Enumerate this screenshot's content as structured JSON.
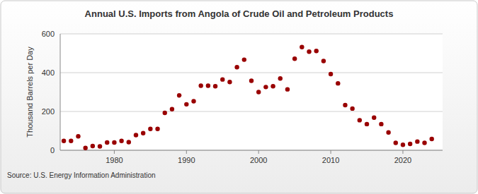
{
  "chart_data": {
    "type": "scatter",
    "title": "Annual U.S. Imports from Angola of Crude Oil and Petroleum Products",
    "y_label": "Thousand Barrels per Day",
    "source": "Source: U.S. Energy Information Administration",
    "x": [
      1973,
      1974,
      1975,
      1976,
      1977,
      1978,
      1979,
      1980,
      1981,
      1982,
      1983,
      1984,
      1985,
      1986,
      1987,
      1988,
      1989,
      1990,
      1991,
      1992,
      1993,
      1994,
      1995,
      1996,
      1997,
      1998,
      1999,
      2000,
      2001,
      2002,
      2003,
      2004,
      2005,
      2006,
      2007,
      2008,
      2009,
      2010,
      2011,
      2012,
      2013,
      2014,
      2015,
      2016,
      2017,
      2018,
      2019,
      2020,
      2021,
      2022,
      2023,
      2024
    ],
    "values": [
      48,
      48,
      72,
      12,
      22,
      20,
      40,
      40,
      48,
      42,
      78,
      88,
      110,
      110,
      193,
      212,
      283,
      237,
      253,
      333,
      333,
      330,
      365,
      352,
      428,
      467,
      358,
      300,
      326,
      330,
      370,
      314,
      472,
      532,
      508,
      512,
      460,
      393,
      345,
      233,
      215,
      155,
      135,
      168,
      135,
      92,
      38,
      28,
      33,
      45,
      38,
      58
    ],
    "color": "#990000",
    "marker": "circle",
    "xlim": [
      1972.5,
      2025.5
    ],
    "xticks": [
      1980,
      1990,
      2000,
      2010,
      2020
    ],
    "ylim": [
      0,
      600
    ],
    "yticks": [
      0,
      200,
      400,
      600
    ],
    "grid": true
  }
}
